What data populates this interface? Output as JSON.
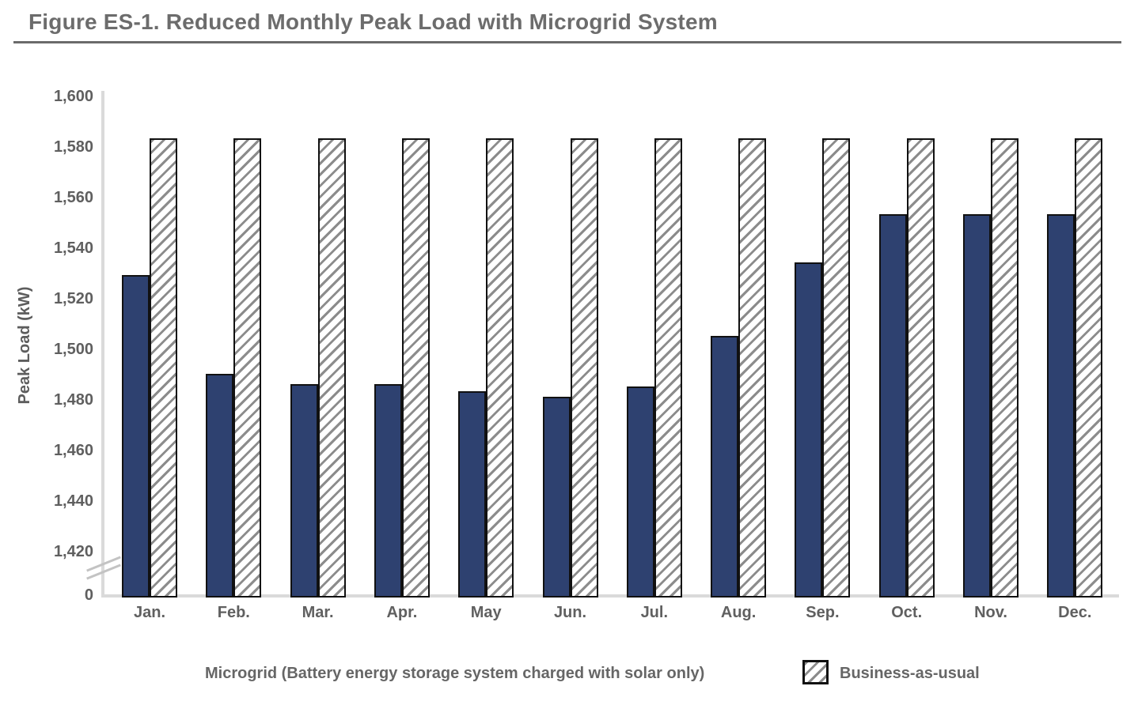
{
  "figure": {
    "title": "Figure ES-1. Reduced Monthly Peak Load with Microgrid System"
  },
  "chart_data": {
    "type": "bar",
    "title": "Figure ES-1. Reduced Monthly Peak Load with Microgrid System",
    "xlabel": "",
    "ylabel": "Peak Load (kW)",
    "categories": [
      "Jan.",
      "Feb.",
      "Mar.",
      "Apr.",
      "May",
      "Jun.",
      "Jul.",
      "Aug.",
      "Sep.",
      "Oct.",
      "Nov.",
      "Dec."
    ],
    "series": [
      {
        "name": "Microgrid (Battery energy storage system charged with solar only)",
        "style": "solid",
        "color": "#2e4170",
        "values": [
          1530,
          1491,
          1487,
          1487,
          1484,
          1482,
          1486,
          1506,
          1535,
          1554,
          1554,
          1554
        ]
      },
      {
        "name": "Business-as-usual",
        "style": "hatched",
        "hatch_color": "#8c8c8c",
        "values": [
          1584,
          1584,
          1584,
          1584,
          1584,
          1584,
          1584,
          1584,
          1584,
          1584,
          1584,
          1584
        ]
      }
    ],
    "y_ticks": [
      "1,600",
      "1,580",
      "1,560",
      "1,540",
      "1,520",
      "1,500",
      "1,480",
      "1,460",
      "1,440",
      "1,420",
      "0"
    ],
    "ylim": [
      1420,
      1600
    ],
    "axis_break": true,
    "grid": false,
    "legend_position": "bottom"
  },
  "colors": {
    "microgrid_fill": "#2e4170",
    "bar_outline": "#111111",
    "hatch_stripe": "#8c8c8c",
    "axis_line": "#dadada",
    "title_text": "#6c6c6c",
    "tick_text": "#5f5f5f"
  }
}
